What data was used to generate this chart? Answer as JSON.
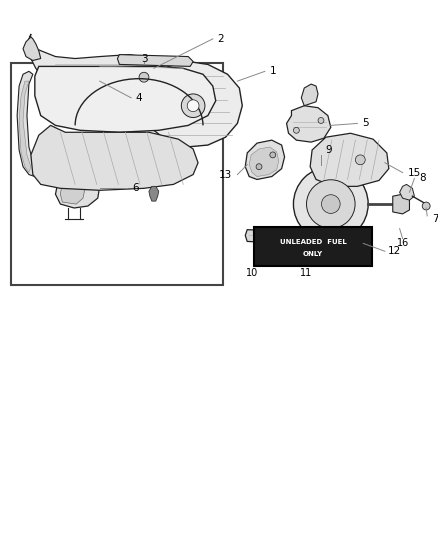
{
  "background_color": "#ffffff",
  "fig_width": 4.38,
  "fig_height": 5.33,
  "dpi": 100,
  "line_color": "#888888",
  "label_color": "#000000",
  "part_edge": "#222222",
  "part_face": "#f0f0f0",
  "part_shadow": "#cccccc",
  "badge_bg": "#1a1a1a",
  "badge_text": "#ffffff"
}
